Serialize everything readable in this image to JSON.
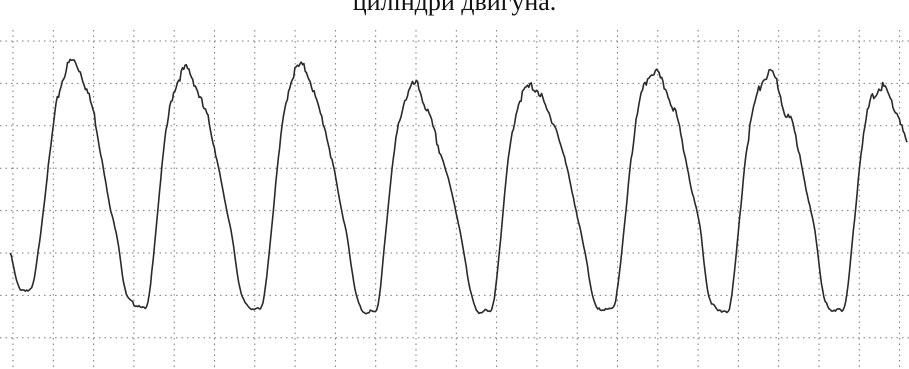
{
  "caption": "циліндри двигуна.",
  "colors": {
    "background": "#ffffff",
    "grid": "#7a7a7a",
    "trace": "#2a2a2a",
    "text": "#111111"
  },
  "chart_data": {
    "type": "line",
    "title": "",
    "xlabel": "",
    "ylabel": "",
    "grid": true,
    "grid_style": "dotted",
    "legend": "none",
    "series": [
      {
        "values": [
          0.22,
          0.1,
          0.08,
          0.1,
          0.3,
          0.55,
          0.78,
          0.9,
          0.96,
          0.93,
          0.85,
          0.75,
          0.58,
          0.4,
          0.28,
          0.08,
          0.03,
          0.02,
          0.03,
          0.3,
          0.6,
          0.8,
          0.89,
          0.93,
          0.88,
          0.8,
          0.72,
          0.58,
          0.42,
          0.28,
          0.08,
          0.02,
          0.01,
          0.03,
          0.28,
          0.58,
          0.8,
          0.91,
          0.94,
          0.9,
          0.8,
          0.71,
          0.58,
          0.42,
          0.28,
          0.08,
          0.0,
          0.0,
          0.02,
          0.3,
          0.58,
          0.76,
          0.84,
          0.87,
          0.8,
          0.72,
          0.62,
          0.52,
          0.4,
          0.26,
          0.08,
          0.0,
          0.0,
          0.02,
          0.28,
          0.58,
          0.76,
          0.84,
          0.86,
          0.84,
          0.77,
          0.72,
          0.62,
          0.5,
          0.36,
          0.22,
          0.06,
          0.0,
          0.01,
          0.04,
          0.28,
          0.58,
          0.78,
          0.88,
          0.92,
          0.88,
          0.82,
          0.74,
          0.6,
          0.45,
          0.32,
          0.08,
          0.01,
          0.0,
          0.03,
          0.3,
          0.6,
          0.78,
          0.87,
          0.91,
          0.88,
          0.77,
          0.72,
          0.6,
          0.44,
          0.3,
          0.08,
          0.0,
          0.01,
          0.03,
          0.3,
          0.6,
          0.78,
          0.84,
          0.86,
          0.8,
          0.74,
          0.64
        ]
      }
    ]
  }
}
